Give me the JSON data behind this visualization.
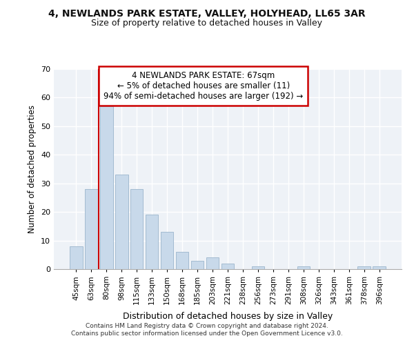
{
  "title": "4, NEWLANDS PARK ESTATE, VALLEY, HOLYHEAD, LL65 3AR",
  "subtitle": "Size of property relative to detached houses in Valley",
  "xlabel": "Distribution of detached houses by size in Valley",
  "ylabel": "Number of detached properties",
  "bar_labels": [
    "45sqm",
    "63sqm",
    "80sqm",
    "98sqm",
    "115sqm",
    "133sqm",
    "150sqm",
    "168sqm",
    "185sqm",
    "203sqm",
    "221sqm",
    "238sqm",
    "256sqm",
    "273sqm",
    "291sqm",
    "308sqm",
    "326sqm",
    "343sqm",
    "361sqm",
    "378sqm",
    "396sqm"
  ],
  "bar_values": [
    8,
    28,
    57,
    33,
    28,
    19,
    13,
    6,
    3,
    4,
    2,
    0,
    1,
    0,
    0,
    1,
    0,
    0,
    0,
    1,
    1
  ],
  "bar_color": "#c8d9ea",
  "bar_edge_color": "#9ab4cc",
  "ylim": [
    0,
    70
  ],
  "yticks": [
    0,
    10,
    20,
    30,
    40,
    50,
    60,
    70
  ],
  "property_line_color": "#cc0000",
  "annotation_line1": "4 NEWLANDS PARK ESTATE: 67sqm",
  "annotation_line2": "← 5% of detached houses are smaller (11)",
  "annotation_line3": "94% of semi-detached houses are larger (192) →",
  "footer1": "Contains HM Land Registry data © Crown copyright and database right 2024.",
  "footer2": "Contains public sector information licensed under the Open Government Licence v3.0."
}
